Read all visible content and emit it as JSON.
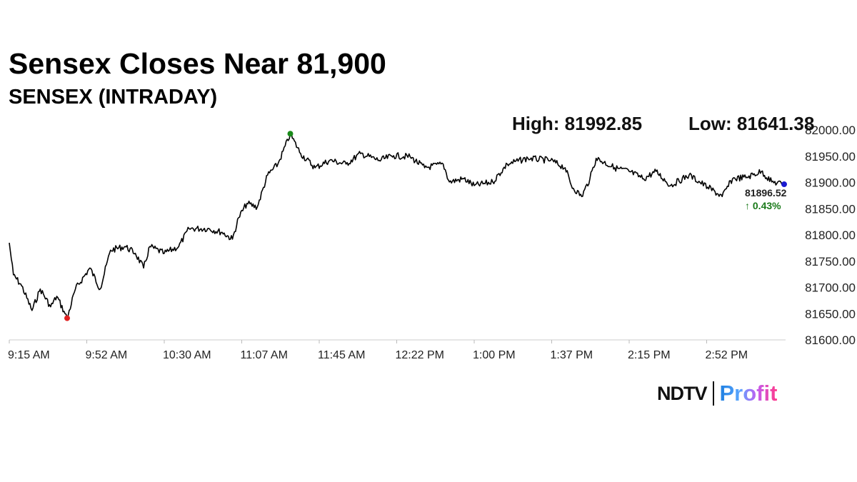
{
  "chart_data": {
    "type": "line",
    "title": "Sensex Closes Near 81,900",
    "subtitle": "SENSEX (INTRADAY)",
    "high_label": "High: 81992.85",
    "low_label": "Low: 81641.38",
    "high": 81992.85,
    "low": 81641.38,
    "last_value": "81896.52",
    "change": "↑ 0.43%",
    "x_unit": "minutes since 9:15 AM",
    "x_range": [
      0,
      375
    ],
    "ylim": [
      81600,
      82000
    ],
    "y_ticks": [
      "81600.00",
      "81650.00",
      "81700.00",
      "81750.00",
      "81800.00",
      "81850.00",
      "81900.00",
      "81950.00",
      "82000.00"
    ],
    "x_ticks": [
      "9:15 AM",
      "9:52 AM",
      "10:30 AM",
      "11:07 AM",
      "11:45 AM",
      "12:22 PM",
      "1:00 PM",
      "1:37 PM",
      "2:15 PM",
      "2:52 PM"
    ],
    "series": [
      {
        "name": "SENSEX",
        "x": [
          0,
          2,
          6,
          11,
          15,
          20,
          23,
          27,
          28,
          32,
          39,
          44,
          49,
          56,
          61,
          65,
          68,
          75,
          82,
          87,
          96,
          103,
          108,
          111,
          115,
          120,
          125,
          130,
          136,
          141,
          148,
          155,
          163,
          170,
          179,
          186,
          194,
          201,
          210,
          213,
          220,
          225,
          234,
          241,
          251,
          262,
          269,
          272,
          277,
          281,
          284,
          293,
          300,
          307,
          313,
          320,
          329,
          338,
          345,
          350,
          357,
          364,
          369,
          375
        ],
        "y": [
          81785,
          81724,
          81703,
          81656,
          81697,
          81663,
          81683,
          81650,
          81641,
          81697,
          81737,
          81697,
          81771,
          81778,
          81765,
          81737,
          81778,
          81765,
          81778,
          81812,
          81812,
          81805,
          81792,
          81833,
          81860,
          81853,
          81914,
          81935,
          81992,
          81955,
          81928,
          81942,
          81935,
          81955,
          81942,
          81951,
          81949,
          81928,
          81935,
          81901,
          81907,
          81894,
          81901,
          81935,
          81946,
          81942,
          81928,
          81894,
          81873,
          81907,
          81946,
          81928,
          81921,
          81907,
          81921,
          81894,
          81914,
          81891,
          81873,
          81907,
          81910,
          81921,
          81901,
          81896.52
        ]
      }
    ],
    "colors": {
      "line": "#000000",
      "high_marker": "#1a8a1a",
      "low_marker": "#e02020",
      "last_marker": "#1a1ad0",
      "change": "#1a7a1a"
    }
  },
  "brand": {
    "left": "NDTV",
    "right": "Profit"
  }
}
